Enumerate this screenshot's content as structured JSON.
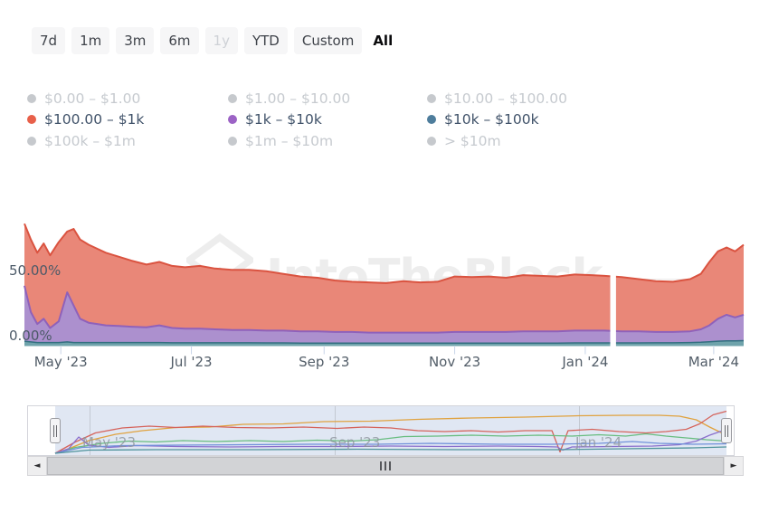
{
  "toolbar": {
    "buttons": [
      {
        "label": "7d",
        "state": "default"
      },
      {
        "label": "1m",
        "state": "default"
      },
      {
        "label": "3m",
        "state": "default"
      },
      {
        "label": "6m",
        "state": "default"
      },
      {
        "label": "1y",
        "state": "disabled"
      },
      {
        "label": "YTD",
        "state": "default"
      },
      {
        "label": "Custom",
        "state": "default"
      },
      {
        "label": "All",
        "state": "selected"
      }
    ]
  },
  "legend": {
    "items": [
      {
        "label": "$0.00 – $1.00",
        "active": false,
        "dot_color": "#c6c9cd"
      },
      {
        "label": "$1.00 – $10.00",
        "active": false,
        "dot_color": "#c6c9cd"
      },
      {
        "label": "$10.00 – $100.00",
        "active": false,
        "dot_color": "#c6c9cd"
      },
      {
        "label": "$100.00 – $1k",
        "active": true,
        "dot_color": "#e8604a"
      },
      {
        "label": "$1k – $10k",
        "active": true,
        "dot_color": "#9c63c5"
      },
      {
        "label": "$10k – $100k",
        "active": true,
        "dot_color": "#4e7d9c"
      },
      {
        "label": "$100k – $1m",
        "active": false,
        "dot_color": "#c6c9cd"
      },
      {
        "label": "$1m – $10m",
        "active": false,
        "dot_color": "#c6c9cd"
      },
      {
        "label": "> $10m",
        "active": false,
        "dot_color": "#c6c9cd"
      }
    ]
  },
  "chart": {
    "watermark": "IntoTheBlock"
  },
  "chart_data": {
    "type": "area",
    "stacked": true,
    "unit": "%",
    "x_range": [
      "2023-04-14",
      "2024-03-15"
    ],
    "y_axis": {
      "max": 100,
      "ticks": [
        {
          "value": 50,
          "label": "50.00%"
        },
        {
          "value": 0,
          "label": "0.00%"
        }
      ]
    },
    "x_ticks": [
      {
        "date": "2023-05-01",
        "label": "May '23"
      },
      {
        "date": "2023-07-01",
        "label": "Jul '23"
      },
      {
        "date": "2023-09-01",
        "label": "Sep '23"
      },
      {
        "date": "2023-11-01",
        "label": "Nov '23"
      },
      {
        "date": "2024-01-01",
        "label": "Jan '24"
      },
      {
        "date": "2024-03-01",
        "label": "Mar '24"
      }
    ],
    "data_gap_date": "2024-01-14",
    "dates": [
      "2023-04-14",
      "2023-04-17",
      "2023-04-20",
      "2023-04-23",
      "2023-04-26",
      "2023-04-30",
      "2023-05-04",
      "2023-05-07",
      "2023-05-10",
      "2023-05-14",
      "2023-05-18",
      "2023-05-22",
      "2023-05-28",
      "2023-06-03",
      "2023-06-10",
      "2023-06-16",
      "2023-06-22",
      "2023-06-28",
      "2023-07-05",
      "2023-07-12",
      "2023-07-20",
      "2023-07-28",
      "2023-08-05",
      "2023-08-13",
      "2023-08-21",
      "2023-08-29",
      "2023-09-06",
      "2023-09-14",
      "2023-09-22",
      "2023-09-30",
      "2023-10-08",
      "2023-10-16",
      "2023-10-24",
      "2023-11-01",
      "2023-11-09",
      "2023-11-17",
      "2023-11-25",
      "2023-12-03",
      "2023-12-11",
      "2023-12-19",
      "2023-12-27",
      "2024-01-04",
      "2024-01-10",
      "2024-01-18",
      "2024-01-26",
      "2024-02-03",
      "2024-02-11",
      "2024-02-19",
      "2024-02-24",
      "2024-02-28",
      "2024-03-03",
      "2024-03-07",
      "2024-03-11",
      "2024-03-15"
    ],
    "series": [
      {
        "name": "$100.00 – $1k",
        "line": "#da5340",
        "fill": "#e98778",
        "values": [
          47,
          55,
          54,
          57,
          55,
          60,
          46,
          58,
          60,
          59,
          57,
          55,
          52.5,
          50,
          47.5,
          48,
          47,
          46.5,
          47.5,
          46,
          45.5,
          45.5,
          45,
          43,
          41.5,
          40.5,
          39,
          38,
          38,
          37.5,
          39,
          38,
          38.5,
          42,
          41.5,
          42,
          41,
          42.5,
          42,
          41.5,
          42.5,
          42,
          41.5,
          41,
          39.5,
          38.5,
          38,
          39.5,
          42,
          48,
          51,
          51,
          50,
          53
        ]
      },
      {
        "name": "$1k – $10k",
        "line": "#8f61ba",
        "fill": "#ac90ce",
        "values": [
          42,
          22.5,
          14,
          18,
          11,
          16,
          37.5,
          28,
          18,
          15,
          14,
          13,
          12.5,
          12,
          11.5,
          13,
          11.2,
          10.7,
          10.7,
          10.2,
          9.7,
          9.7,
          9.3,
          9.3,
          8.9,
          8.9,
          8.5,
          8.5,
          8,
          8,
          8,
          8,
          8,
          8.5,
          8.5,
          8.5,
          8.5,
          8.9,
          8.9,
          8.9,
          9.3,
          9.3,
          9.3,
          8.8,
          8.8,
          8.2,
          8.2,
          8.5,
          9.8,
          12.4,
          17,
          19.8,
          17.8,
          19.6
        ]
      },
      {
        "name": "$10k – $100k",
        "line": "#336f80",
        "fill": "#6fa3ab",
        "values": [
          3,
          2.5,
          2,
          2,
          2,
          2,
          2.5,
          2,
          2,
          2,
          2,
          2,
          2,
          2,
          2,
          2,
          1.8,
          1.8,
          1.8,
          1.8,
          1.8,
          1.8,
          1.7,
          1.7,
          1.6,
          1.6,
          1.5,
          1.5,
          1.5,
          1.5,
          1.5,
          1.5,
          1.5,
          1.5,
          1.5,
          1.5,
          1.5,
          1.6,
          1.6,
          1.6,
          1.7,
          1.7,
          1.7,
          1.7,
          1.7,
          1.8,
          1.8,
          2,
          2.2,
          2.6,
          3,
          3.2,
          3.2,
          3.4
        ]
      }
    ],
    "navigator": {
      "x_ticks": [
        {
          "date": "2023-05-01",
          "label": "May '23"
        },
        {
          "date": "2023-09-01",
          "label": "Sep '23"
        },
        {
          "date": "2024-01-01",
          "label": "Jan '24"
        }
      ],
      "series": [
        {
          "name": "$0.00 – $1.00",
          "color": "#e0a23f",
          "points": [
            [
              0,
              1
            ],
            [
              0.02,
              0.9
            ],
            [
              0.05,
              0.72
            ],
            [
              0.09,
              0.58
            ],
            [
              0.13,
              0.5
            ],
            [
              0.18,
              0.43
            ],
            [
              0.23,
              0.42
            ],
            [
              0.28,
              0.36
            ],
            [
              0.34,
              0.35
            ],
            [
              0.4,
              0.3
            ],
            [
              0.47,
              0.29
            ],
            [
              0.54,
              0.25
            ],
            [
              0.62,
              0.22
            ],
            [
              0.7,
              0.2
            ],
            [
              0.78,
              0.17
            ],
            [
              0.85,
              0.16
            ],
            [
              0.9,
              0.16
            ],
            [
              0.93,
              0.18
            ],
            [
              0.955,
              0.26
            ],
            [
              0.975,
              0.42
            ],
            [
              1,
              0.6
            ]
          ]
        },
        {
          "name": "$100.00 – $1k",
          "color": "#d5645c",
          "points": [
            [
              0,
              1
            ],
            [
              0.03,
              0.75
            ],
            [
              0.06,
              0.55
            ],
            [
              0.1,
              0.44
            ],
            [
              0.14,
              0.4
            ],
            [
              0.18,
              0.43
            ],
            [
              0.22,
              0.4
            ],
            [
              0.27,
              0.43
            ],
            [
              0.32,
              0.44
            ],
            [
              0.37,
              0.42
            ],
            [
              0.42,
              0.45
            ],
            [
              0.46,
              0.42
            ],
            [
              0.5,
              0.44
            ],
            [
              0.54,
              0.5
            ],
            [
              0.58,
              0.52
            ],
            [
              0.62,
              0.5
            ],
            [
              0.66,
              0.53
            ],
            [
              0.7,
              0.5
            ],
            [
              0.74,
              0.5
            ],
            [
              0.752,
              0.97
            ],
            [
              0.764,
              0.5
            ],
            [
              0.8,
              0.47
            ],
            [
              0.84,
              0.52
            ],
            [
              0.88,
              0.55
            ],
            [
              0.91,
              0.52
            ],
            [
              0.94,
              0.47
            ],
            [
              0.96,
              0.35
            ],
            [
              0.98,
              0.15
            ],
            [
              1,
              0.07
            ]
          ]
        },
        {
          "name": "$1.00 – $10.00",
          "color": "#68bd80",
          "points": [
            [
              0,
              1
            ],
            [
              0.03,
              0.87
            ],
            [
              0.07,
              0.78
            ],
            [
              0.11,
              0.73
            ],
            [
              0.15,
              0.75
            ],
            [
              0.19,
              0.72
            ],
            [
              0.24,
              0.74
            ],
            [
              0.29,
              0.72
            ],
            [
              0.34,
              0.74
            ],
            [
              0.39,
              0.71
            ],
            [
              0.44,
              0.73
            ],
            [
              0.48,
              0.7
            ],
            [
              0.52,
              0.63
            ],
            [
              0.57,
              0.62
            ],
            [
              0.62,
              0.6
            ],
            [
              0.67,
              0.62
            ],
            [
              0.72,
              0.6
            ],
            [
              0.77,
              0.62
            ],
            [
              0.81,
              0.59
            ],
            [
              0.85,
              0.62
            ],
            [
              0.88,
              0.57
            ],
            [
              0.91,
              0.62
            ],
            [
              0.94,
              0.66
            ],
            [
              0.97,
              0.7
            ],
            [
              1,
              0.73
            ]
          ]
        },
        {
          "name": "$1k – $10k",
          "color": "#8a6fcc",
          "points": [
            [
              0,
              1
            ],
            [
              0.02,
              0.9
            ],
            [
              0.035,
              0.64
            ],
            [
              0.05,
              0.82
            ],
            [
              0.08,
              0.87
            ],
            [
              0.12,
              0.83
            ],
            [
              0.18,
              0.85
            ],
            [
              0.26,
              0.86
            ],
            [
              0.34,
              0.85
            ],
            [
              0.42,
              0.85
            ],
            [
              0.5,
              0.84
            ],
            [
              0.58,
              0.85
            ],
            [
              0.66,
              0.84
            ],
            [
              0.72,
              0.85
            ],
            [
              0.748,
              0.86
            ],
            [
              0.756,
              0.93
            ],
            [
              0.77,
              0.86
            ],
            [
              0.83,
              0.85
            ],
            [
              0.89,
              0.84
            ],
            [
              0.93,
              0.81
            ],
            [
              0.955,
              0.73
            ],
            [
              0.975,
              0.6
            ],
            [
              1,
              0.47
            ]
          ]
        },
        {
          "name": "$10.00 – $100.00",
          "color": "#7191da",
          "points": [
            [
              0,
              1
            ],
            [
              0.04,
              0.87
            ],
            [
              0.1,
              0.83
            ],
            [
              0.18,
              0.82
            ],
            [
              0.28,
              0.81
            ],
            [
              0.38,
              0.8
            ],
            [
              0.48,
              0.8
            ],
            [
              0.56,
              0.78
            ],
            [
              0.66,
              0.8
            ],
            [
              0.74,
              0.8
            ],
            [
              0.81,
              0.78
            ],
            [
              0.86,
              0.74
            ],
            [
              0.9,
              0.78
            ],
            [
              0.95,
              0.8
            ],
            [
              1,
              0.79
            ]
          ]
        },
        {
          "name": "$10k – $100k",
          "color": "#4f939b",
          "points": [
            [
              0,
              1
            ],
            [
              0.05,
              0.93
            ],
            [
              0.15,
              0.92
            ],
            [
              0.3,
              0.92
            ],
            [
              0.45,
              0.91
            ],
            [
              0.6,
              0.92
            ],
            [
              0.75,
              0.92
            ],
            [
              0.85,
              0.9
            ],
            [
              0.95,
              0.88
            ],
            [
              1,
              0.86
            ]
          ]
        }
      ]
    }
  },
  "icons": {
    "scroll_left": "◄",
    "scroll_right": "►"
  }
}
